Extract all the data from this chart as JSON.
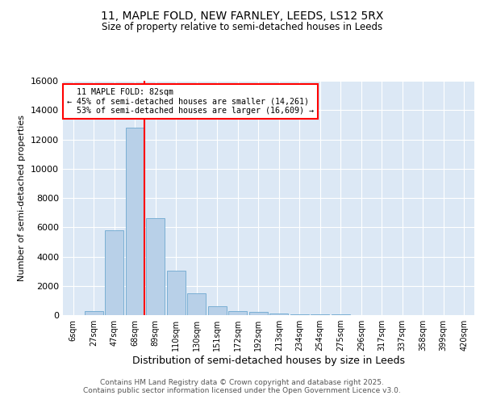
{
  "title_line1": "11, MAPLE FOLD, NEW FARNLEY, LEEDS, LS12 5RX",
  "title_line2": "Size of property relative to semi-detached houses in Leeds",
  "xlabel": "Distribution of semi-detached houses by size in Leeds",
  "ylabel": "Number of semi-detached properties",
  "categories": [
    "6sqm",
    "27sqm",
    "47sqm",
    "68sqm",
    "89sqm",
    "110sqm",
    "130sqm",
    "151sqm",
    "172sqm",
    "192sqm",
    "213sqm",
    "234sqm",
    "254sqm",
    "275sqm",
    "296sqm",
    "317sqm",
    "337sqm",
    "358sqm",
    "399sqm",
    "420sqm"
  ],
  "values": [
    0,
    300,
    5800,
    12800,
    6600,
    3050,
    1480,
    620,
    300,
    230,
    110,
    70,
    50,
    30,
    0,
    10,
    0,
    0,
    0,
    0
  ],
  "bar_color": "#b8d0e8",
  "bar_edge_color": "#7aafd4",
  "subject_sqm": 82,
  "smaller_pct": 45,
  "smaller_count": 14261,
  "larger_pct": 53,
  "larger_count": 16609,
  "ylim": [
    0,
    16000
  ],
  "yticks": [
    0,
    2000,
    4000,
    6000,
    8000,
    10000,
    12000,
    14000,
    16000
  ],
  "bg_color": "#dce8f5",
  "footnote1": "Contains HM Land Registry data © Crown copyright and database right 2025.",
  "footnote2": "Contains public sector information licensed under the Open Government Licence v3.0."
}
